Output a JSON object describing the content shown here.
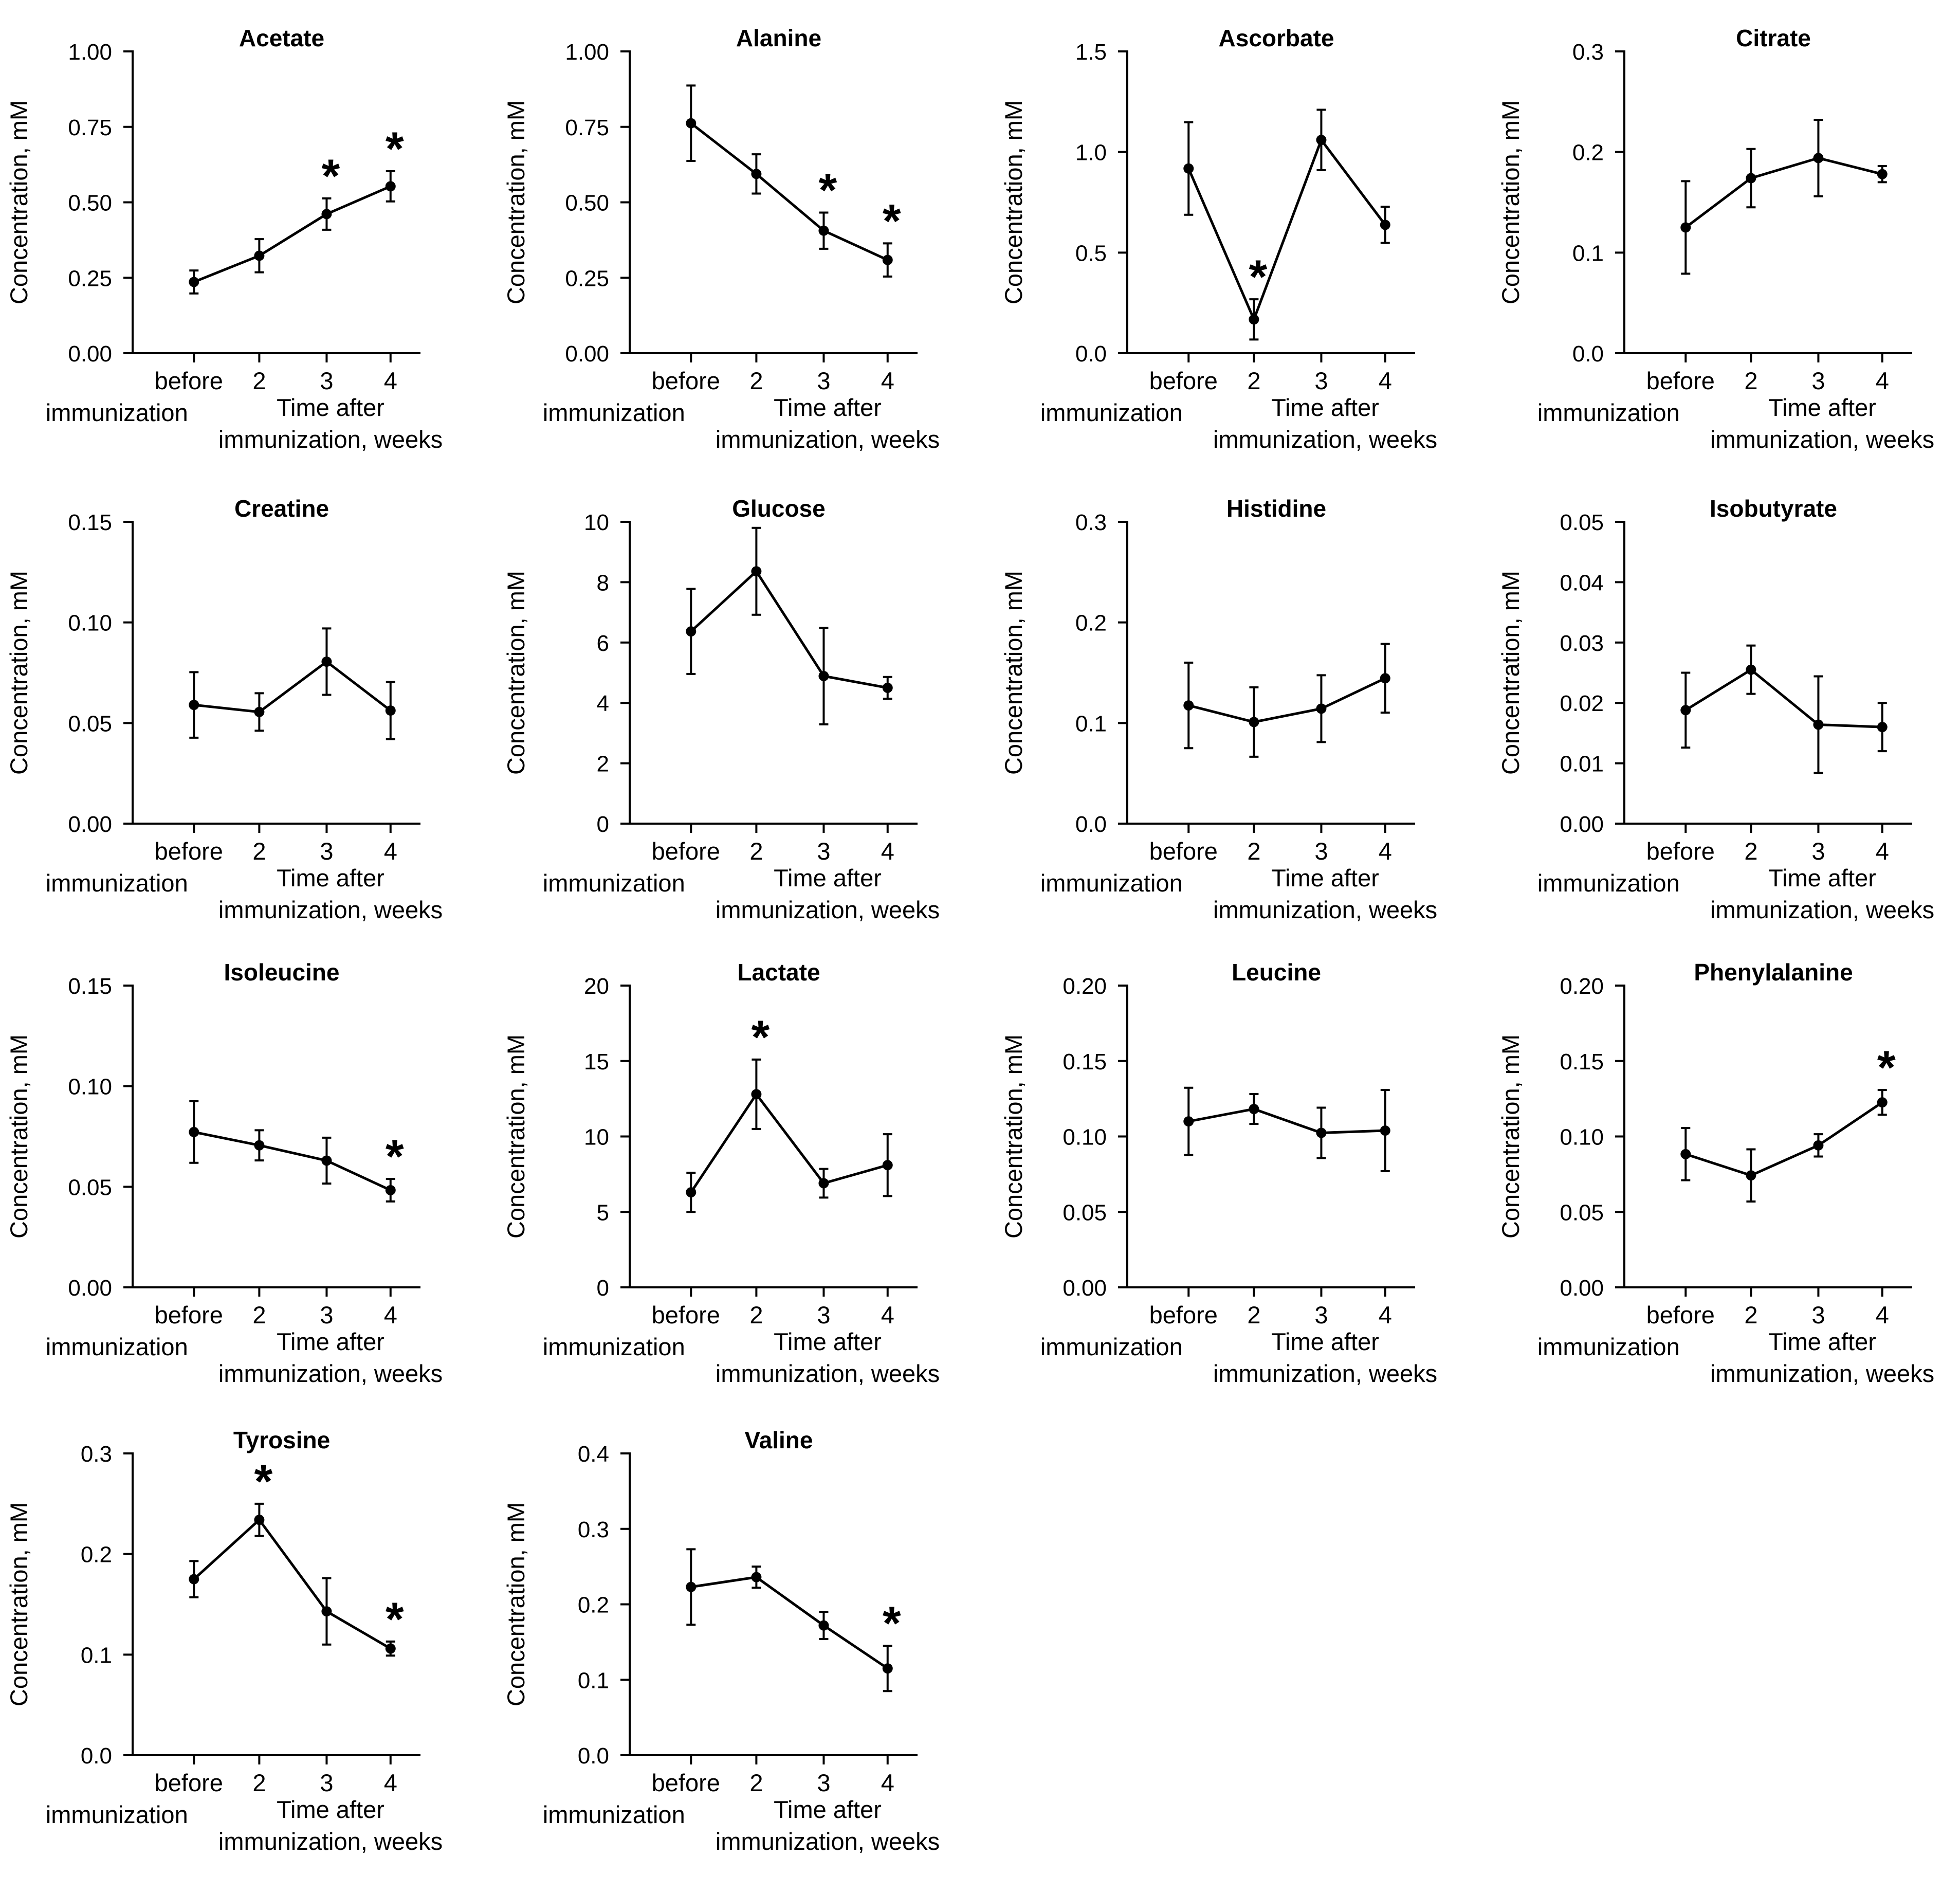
{
  "figure": {
    "category_labels": [
      "before immunization",
      "2",
      "3",
      "4"
    ],
    "x_axis_label": "Time after immunization, weeks",
    "y_axis_label": "Concentration, mM"
  },
  "chart_data": [
    {
      "type": "line",
      "title": "Acetate",
      "categories": [
        "before immunization",
        "2",
        "3",
        "4"
      ],
      "values": [
        0.236,
        0.323,
        0.461,
        0.553
      ],
      "error": [
        0.038,
        0.055,
        0.052,
        0.05
      ],
      "significant": [
        false,
        false,
        true,
        true
      ],
      "yticks": [
        "0.00",
        "0.25",
        "0.50",
        "0.75",
        "1.00"
      ],
      "ylim": [
        0,
        1
      ],
      "xlabel": "Time after immunization, weeks",
      "ylabel": "Concentration, mM"
    },
    {
      "type": "line",
      "title": "Alanine",
      "categories": [
        "before immunization",
        "2",
        "3",
        "4"
      ],
      "values": [
        0.762,
        0.594,
        0.406,
        0.309
      ],
      "error": [
        0.125,
        0.065,
        0.06,
        0.055
      ],
      "significant": [
        false,
        false,
        true,
        true
      ],
      "yticks": [
        "0.00",
        "0.25",
        "0.50",
        "0.75",
        "1.00"
      ],
      "ylim": [
        0,
        1
      ],
      "xlabel": "Time after immunization, weeks",
      "ylabel": "Concentration, mM"
    },
    {
      "type": "line",
      "title": "Ascorbate",
      "categories": [
        "before immunization",
        "2",
        "3",
        "4"
      ],
      "values": [
        0.918,
        0.168,
        1.06,
        0.638
      ],
      "error": [
        0.23,
        0.1,
        0.15,
        0.09
      ],
      "significant": [
        false,
        true,
        false,
        false
      ],
      "yticks": [
        "0.0",
        "0.5",
        "1.0",
        "1.5"
      ],
      "ylim": [
        0,
        1.5
      ],
      "xlabel": "Time after immunization, weeks",
      "ylabel": "Concentration, mM"
    },
    {
      "type": "line",
      "title": "Citrate",
      "categories": [
        "before immunization",
        "2",
        "3",
        "4"
      ],
      "values": [
        0.125,
        0.174,
        0.194,
        0.178
      ],
      "error": [
        0.046,
        0.029,
        0.038,
        0.008
      ],
      "significant": [
        false,
        false,
        false,
        false
      ],
      "yticks": [
        "0.0",
        "0.1",
        "0.2",
        "0.3"
      ],
      "ylim": [
        0,
        0.3
      ],
      "xlabel": "Time after immunization, weeks",
      "ylabel": "Concentration, mM"
    },
    {
      "type": "line",
      "title": "Creatine",
      "categories": [
        "before immunization",
        "2",
        "3",
        "4"
      ],
      "values": [
        0.059,
        0.0555,
        0.0805,
        0.0562
      ],
      "error": [
        0.0163,
        0.0093,
        0.0165,
        0.0142
      ],
      "significant": [
        false,
        false,
        false,
        false
      ],
      "yticks": [
        "0.00",
        "0.05",
        "0.10",
        "0.15"
      ],
      "ylim": [
        0,
        0.15
      ],
      "xlabel": "Time after immunization, weeks",
      "ylabel": "Concentration, mM"
    },
    {
      "type": "line",
      "title": "Glucose",
      "categories": [
        "before immunization",
        "2",
        "3",
        "4"
      ],
      "values": [
        6.37,
        8.36,
        4.89,
        4.5
      ],
      "error": [
        1.41,
        1.44,
        1.6,
        0.36
      ],
      "significant": [
        false,
        false,
        false,
        false
      ],
      "yticks": [
        "0",
        "2",
        "4",
        "6",
        "8",
        "10"
      ],
      "ylim": [
        0,
        10
      ],
      "xlabel": "Time after immunization, weeks",
      "ylabel": "Concentration, mM"
    },
    {
      "type": "line",
      "title": "Histidine",
      "categories": [
        "before immunization",
        "2",
        "3",
        "4"
      ],
      "values": [
        0.1175,
        0.101,
        0.1143,
        0.1445
      ],
      "error": [
        0.0425,
        0.0345,
        0.0332,
        0.0342
      ],
      "significant": [
        false,
        false,
        false,
        false
      ],
      "yticks": [
        "0.0",
        "0.1",
        "0.2",
        "0.3"
      ],
      "ylim": [
        0,
        0.3
      ],
      "xlabel": "Time after immunization, weeks",
      "ylabel": "Concentration, mM"
    },
    {
      "type": "line",
      "title": "Isobutyrate",
      "categories": [
        "before immunization",
        "2",
        "3",
        "4"
      ],
      "values": [
        0.0188,
        0.0255,
        0.0164,
        0.016
      ],
      "error": [
        0.0062,
        0.004,
        0.008,
        0.004
      ],
      "significant": [
        false,
        false,
        false,
        false
      ],
      "yticks": [
        "0.00",
        "0.01",
        "0.02",
        "0.03",
        "0.04",
        "0.05"
      ],
      "ylim": [
        0,
        0.05
      ],
      "xlabel": "Time after immunization, weeks",
      "ylabel": "Concentration, mM"
    },
    {
      "type": "line",
      "title": "Isoleucine",
      "categories": [
        "before immunization",
        "2",
        "3",
        "4"
      ],
      "values": [
        0.0772,
        0.0706,
        0.063,
        0.0483
      ],
      "error": [
        0.0153,
        0.0075,
        0.0114,
        0.0056
      ],
      "significant": [
        false,
        false,
        false,
        true
      ],
      "yticks": [
        "0.00",
        "0.05",
        "0.10",
        "0.15"
      ],
      "ylim": [
        0,
        0.15
      ],
      "xlabel": "Time after immunization, weeks",
      "ylabel": "Concentration, mM"
    },
    {
      "type": "line",
      "title": "Lactate",
      "categories": [
        "before immunization",
        "2",
        "3",
        "4"
      ],
      "values": [
        6.3,
        12.8,
        6.9,
        8.1
      ],
      "error": [
        1.3,
        2.3,
        0.95,
        2.05
      ],
      "significant": [
        false,
        true,
        false,
        false
      ],
      "yticks": [
        "0",
        "5",
        "10",
        "15",
        "20"
      ],
      "ylim": [
        0,
        20
      ],
      "xlabel": "Time after immunization, weeks",
      "ylabel": "Concentration, mM"
    },
    {
      "type": "line",
      "title": "Leucine",
      "categories": [
        "before immunization",
        "2",
        "3",
        "4"
      ],
      "values": [
        0.11,
        0.1182,
        0.1024,
        0.1039
      ],
      "error": [
        0.0223,
        0.0099,
        0.0167,
        0.0269
      ],
      "significant": [
        false,
        false,
        false,
        false
      ],
      "yticks": [
        "0.00",
        "0.05",
        "0.10",
        "0.15",
        "0.20"
      ],
      "ylim": [
        0,
        0.2
      ],
      "xlabel": "Time after immunization, weeks",
      "ylabel": "Concentration, mM"
    },
    {
      "type": "line",
      "title": "Phenylalanine",
      "categories": [
        "before immunization",
        "2",
        "3",
        "4"
      ],
      "values": [
        0.0883,
        0.0742,
        0.0941,
        0.1226
      ],
      "error": [
        0.0173,
        0.0173,
        0.0074,
        0.0082
      ],
      "significant": [
        false,
        false,
        false,
        true
      ],
      "yticks": [
        "0.00",
        "0.05",
        "0.10",
        "0.15",
        "0.20"
      ],
      "ylim": [
        0,
        0.2
      ],
      "xlabel": "Time after immunization, weeks",
      "ylabel": "Concentration, mM"
    },
    {
      "type": "line",
      "title": "Tyrosine",
      "categories": [
        "before immunization",
        "2",
        "3",
        "4"
      ],
      "values": [
        0.175,
        0.234,
        0.143,
        0.106
      ],
      "error": [
        0.018,
        0.016,
        0.033,
        0.007
      ],
      "significant": [
        false,
        true,
        false,
        true
      ],
      "yticks": [
        "0.0",
        "0.1",
        "0.2",
        "0.3"
      ],
      "ylim": [
        0,
        0.3
      ],
      "xlabel": "Time after immunization, weeks",
      "ylabel": "Concentration, mM"
    },
    {
      "type": "line",
      "title": "Valine",
      "categories": [
        "before immunization",
        "2",
        "3",
        "4"
      ],
      "values": [
        0.223,
        0.236,
        0.172,
        0.115
      ],
      "error": [
        0.05,
        0.014,
        0.018,
        0.03
      ],
      "significant": [
        false,
        false,
        false,
        true
      ],
      "yticks": [
        "0.0",
        "0.1",
        "0.2",
        "0.3",
        "0.4"
      ],
      "ylim": [
        0,
        0.4
      ],
      "xlabel": "Time after immunization, weeks",
      "ylabel": "Concentration, mM"
    }
  ]
}
